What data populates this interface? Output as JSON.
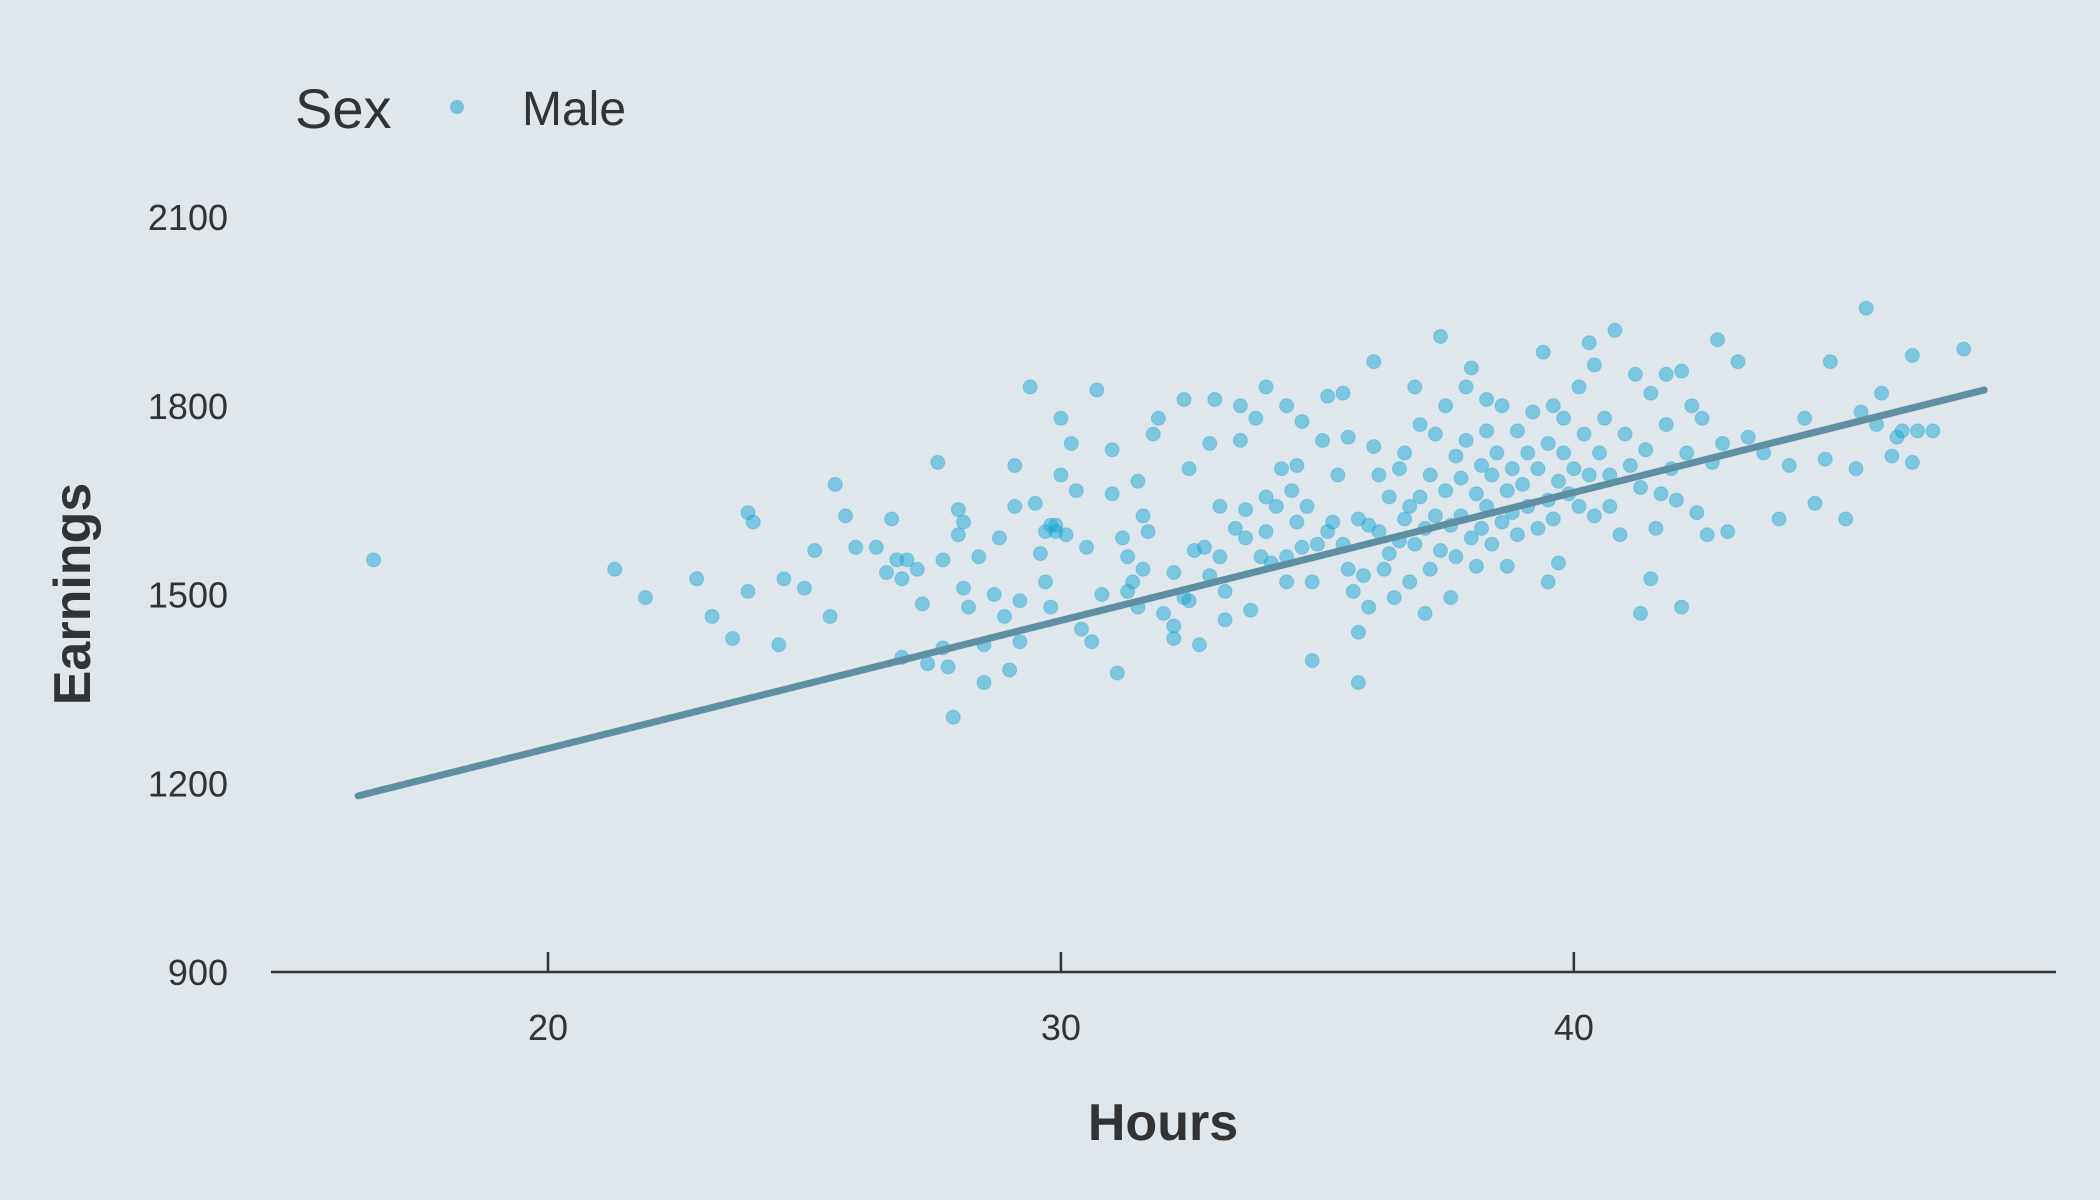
{
  "chart_data": {
    "type": "scatter",
    "xlabel": "Hours",
    "ylabel": "Earnings",
    "xlim": [
      14.6,
      49.4
    ],
    "ylim": [
      900,
      2100
    ],
    "x_ticks": [
      20,
      30,
      40
    ],
    "y_ticks": [
      900,
      1200,
      1500,
      1800,
      2100
    ],
    "legend": {
      "title": "Sex",
      "entries": [
        "Male"
      ],
      "position": "top-left"
    },
    "grid": false,
    "colors": {
      "points": "#1aa6d4",
      "trend_line": "#5f8fa3",
      "background": "#dfe6ec",
      "axis": "#333333"
    },
    "trend_line": {
      "x": [
        16.3,
        48.0
      ],
      "y": [
        1180,
        1825
      ]
    },
    "series": [
      {
        "name": "Male",
        "points": [
          [
            16.6,
            1555
          ],
          [
            21.3,
            1540
          ],
          [
            21.9,
            1495
          ],
          [
            22.9,
            1525
          ],
          [
            23.2,
            1465
          ],
          [
            23.6,
            1430
          ],
          [
            23.9,
            1630
          ],
          [
            24.0,
            1615
          ],
          [
            23.9,
            1505
          ],
          [
            24.5,
            1420
          ],
          [
            24.6,
            1525
          ],
          [
            25.0,
            1510
          ],
          [
            25.2,
            1570
          ],
          [
            25.6,
            1675
          ],
          [
            25.5,
            1465
          ],
          [
            25.8,
            1625
          ],
          [
            26.0,
            1575
          ],
          [
            26.4,
            1575
          ],
          [
            26.6,
            1535
          ],
          [
            26.7,
            1620
          ],
          [
            26.8,
            1555
          ],
          [
            26.9,
            1525
          ],
          [
            27.0,
            1555
          ],
          [
            26.9,
            1400
          ],
          [
            27.2,
            1540
          ],
          [
            27.3,
            1485
          ],
          [
            27.6,
            1710
          ],
          [
            27.7,
            1555
          ],
          [
            27.7,
            1415
          ],
          [
            27.8,
            1385
          ],
          [
            27.9,
            1305
          ],
          [
            28.0,
            1635
          ],
          [
            28.0,
            1595
          ],
          [
            28.1,
            1510
          ],
          [
            28.1,
            1615
          ],
          [
            28.2,
            1480
          ],
          [
            28.4,
            1560
          ],
          [
            28.5,
            1420
          ],
          [
            28.7,
            1500
          ],
          [
            28.8,
            1590
          ],
          [
            28.9,
            1465
          ],
          [
            29.0,
            1380
          ],
          [
            29.1,
            1640
          ],
          [
            29.2,
            1425
          ],
          [
            29.5,
            1645
          ],
          [
            29.6,
            1565
          ],
          [
            29.8,
            1480
          ],
          [
            29.9,
            1610
          ],
          [
            30.0,
            1690
          ],
          [
            29.8,
            1610
          ],
          [
            30.1,
            1595
          ],
          [
            29.7,
            1520
          ],
          [
            29.9,
            1600
          ],
          [
            30.3,
            1665
          ],
          [
            30.2,
            1740
          ],
          [
            30.5,
            1575
          ],
          [
            30.7,
            1825
          ],
          [
            31.0,
            1660
          ],
          [
            31.0,
            1730
          ],
          [
            31.1,
            1375
          ],
          [
            31.2,
            1590
          ],
          [
            31.3,
            1560
          ],
          [
            31.4,
            1520
          ],
          [
            31.5,
            1680
          ],
          [
            31.6,
            1540
          ],
          [
            31.6,
            1625
          ],
          [
            31.7,
            1600
          ],
          [
            31.9,
            1780
          ],
          [
            32.0,
            1470
          ],
          [
            32.2,
            1450
          ],
          [
            32.2,
            1535
          ],
          [
            32.2,
            1430
          ],
          [
            32.4,
            1495
          ],
          [
            32.5,
            1700
          ],
          [
            32.5,
            1490
          ],
          [
            32.6,
            1570
          ],
          [
            32.8,
            1575
          ],
          [
            32.9,
            1530
          ],
          [
            33.0,
            1810
          ],
          [
            33.1,
            1560
          ],
          [
            33.1,
            1640
          ],
          [
            33.2,
            1505
          ],
          [
            33.4,
            1605
          ],
          [
            33.5,
            1745
          ],
          [
            33.6,
            1590
          ],
          [
            33.6,
            1635
          ],
          [
            33.7,
            1475
          ],
          [
            33.8,
            1780
          ],
          [
            34.0,
            1655
          ],
          [
            34.0,
            1600
          ],
          [
            34.1,
            1550
          ],
          [
            34.2,
            1640
          ],
          [
            34.3,
            1700
          ],
          [
            34.4,
            1560
          ],
          [
            34.4,
            1520
          ],
          [
            34.4,
            1800
          ],
          [
            34.5,
            1665
          ],
          [
            34.6,
            1705
          ],
          [
            34.6,
            1615
          ],
          [
            34.7,
            1575
          ],
          [
            34.8,
            1640
          ],
          [
            34.9,
            1395
          ],
          [
            34.9,
            1520
          ],
          [
            35.0,
            1580
          ],
          [
            35.1,
            1745
          ],
          [
            35.2,
            1600
          ],
          [
            35.2,
            1815
          ],
          [
            35.3,
            1615
          ],
          [
            35.4,
            1690
          ],
          [
            35.5,
            1820
          ],
          [
            35.5,
            1580
          ],
          [
            35.6,
            1750
          ],
          [
            35.6,
            1540
          ],
          [
            35.7,
            1505
          ],
          [
            35.8,
            1620
          ],
          [
            35.8,
            1440
          ],
          [
            35.9,
            1530
          ],
          [
            36.0,
            1610
          ],
          [
            36.0,
            1480
          ],
          [
            36.1,
            1735
          ],
          [
            36.2,
            1600
          ],
          [
            36.2,
            1690
          ],
          [
            36.3,
            1540
          ],
          [
            36.4,
            1565
          ],
          [
            36.4,
            1655
          ],
          [
            36.5,
            1495
          ],
          [
            36.6,
            1585
          ],
          [
            36.6,
            1700
          ],
          [
            36.7,
            1620
          ],
          [
            36.7,
            1725
          ],
          [
            36.8,
            1640
          ],
          [
            36.8,
            1520
          ],
          [
            36.9,
            1580
          ],
          [
            37.0,
            1655
          ],
          [
            37.0,
            1770
          ],
          [
            37.1,
            1470
          ],
          [
            37.1,
            1605
          ],
          [
            37.2,
            1540
          ],
          [
            37.2,
            1690
          ],
          [
            37.3,
            1625
          ],
          [
            37.3,
            1755
          ],
          [
            37.4,
            1570
          ],
          [
            37.5,
            1665
          ],
          [
            37.5,
            1800
          ],
          [
            37.6,
            1610
          ],
          [
            37.6,
            1495
          ],
          [
            37.7,
            1720
          ],
          [
            37.7,
            1560
          ],
          [
            37.8,
            1625
          ],
          [
            37.8,
            1685
          ],
          [
            37.9,
            1745
          ],
          [
            37.9,
            1830
          ],
          [
            38.0,
            1590
          ],
          [
            38.0,
            1860
          ],
          [
            38.1,
            1660
          ],
          [
            38.1,
            1545
          ],
          [
            38.2,
            1705
          ],
          [
            38.2,
            1605
          ],
          [
            38.3,
            1760
          ],
          [
            38.3,
            1640
          ],
          [
            38.4,
            1690
          ],
          [
            38.4,
            1580
          ],
          [
            38.5,
            1725
          ],
          [
            38.6,
            1615
          ],
          [
            38.6,
            1800
          ],
          [
            38.7,
            1665
          ],
          [
            38.7,
            1545
          ],
          [
            38.8,
            1700
          ],
          [
            38.8,
            1630
          ],
          [
            38.9,
            1760
          ],
          [
            38.9,
            1595
          ],
          [
            39.0,
            1675
          ],
          [
            39.1,
            1725
          ],
          [
            39.1,
            1640
          ],
          [
            39.2,
            1790
          ],
          [
            39.3,
            1605
          ],
          [
            39.3,
            1700
          ],
          [
            39.4,
            1885
          ],
          [
            39.5,
            1650
          ],
          [
            39.5,
            1740
          ],
          [
            39.6,
            1800
          ],
          [
            39.6,
            1620
          ],
          [
            39.7,
            1680
          ],
          [
            39.7,
            1550
          ],
          [
            39.8,
            1725
          ],
          [
            39.8,
            1780
          ],
          [
            39.9,
            1660
          ],
          [
            40.0,
            1700
          ],
          [
            40.1,
            1830
          ],
          [
            40.1,
            1640
          ],
          [
            40.2,
            1755
          ],
          [
            40.3,
            1900
          ],
          [
            40.3,
            1690
          ],
          [
            40.4,
            1865
          ],
          [
            40.5,
            1725
          ],
          [
            40.6,
            1780
          ],
          [
            40.7,
            1640
          ],
          [
            40.7,
            1690
          ],
          [
            40.8,
            1920
          ],
          [
            40.9,
            1595
          ],
          [
            41.0,
            1755
          ],
          [
            41.1,
            1705
          ],
          [
            41.2,
            1850
          ],
          [
            41.3,
            1670
          ],
          [
            41.4,
            1730
          ],
          [
            41.5,
            1820
          ],
          [
            41.6,
            1605
          ],
          [
            41.7,
            1660
          ],
          [
            41.8,
            1850
          ],
          [
            41.8,
            1770
          ],
          [
            41.9,
            1700
          ],
          [
            42.0,
            1650
          ],
          [
            42.1,
            1855
          ],
          [
            42.2,
            1725
          ],
          [
            42.3,
            1800
          ],
          [
            42.4,
            1630
          ],
          [
            42.5,
            1780
          ],
          [
            42.7,
            1710
          ],
          [
            42.8,
            1905
          ],
          [
            42.9,
            1740
          ],
          [
            43.0,
            1600
          ],
          [
            43.2,
            1870
          ],
          [
            43.4,
            1750
          ],
          [
            43.7,
            1725
          ],
          [
            44.0,
            1620
          ],
          [
            44.2,
            1705
          ],
          [
            44.5,
            1780
          ],
          [
            44.7,
            1645
          ],
          [
            44.9,
            1715
          ],
          [
            45.0,
            1870
          ],
          [
            45.3,
            1620
          ],
          [
            45.5,
            1700
          ],
          [
            45.6,
            1790
          ],
          [
            45.7,
            1955
          ],
          [
            45.9,
            1770
          ],
          [
            46.0,
            1820
          ],
          [
            46.2,
            1720
          ],
          [
            46.3,
            1750
          ],
          [
            46.4,
            1760
          ],
          [
            46.6,
            1880
          ],
          [
            46.6,
            1710
          ],
          [
            46.7,
            1760
          ],
          [
            47.0,
            1760
          ],
          [
            47.6,
            1890
          ],
          [
            29.4,
            1830
          ],
          [
            30.0,
            1780
          ],
          [
            29.1,
            1705
          ],
          [
            29.7,
            1600
          ],
          [
            30.4,
            1445
          ],
          [
            30.6,
            1425
          ],
          [
            31.3,
            1505
          ],
          [
            31.8,
            1755
          ],
          [
            32.4,
            1810
          ],
          [
            33.2,
            1460
          ],
          [
            33.5,
            1800
          ],
          [
            34.0,
            1830
          ],
          [
            35.8,
            1360
          ],
          [
            36.1,
            1870
          ],
          [
            36.9,
            1830
          ],
          [
            37.4,
            1910
          ],
          [
            38.3,
            1810
          ],
          [
            39.5,
            1520
          ],
          [
            40.4,
            1625
          ],
          [
            41.3,
            1470
          ],
          [
            41.5,
            1525
          ],
          [
            42.1,
            1480
          ],
          [
            42.6,
            1595
          ],
          [
            33.9,
            1560
          ],
          [
            32.7,
            1420
          ],
          [
            31.5,
            1480
          ],
          [
            30.8,
            1500
          ],
          [
            32.9,
            1740
          ],
          [
            34.7,
            1775
          ],
          [
            28.5,
            1360
          ],
          [
            29.2,
            1490
          ],
          [
            27.4,
            1390
          ]
        ]
      }
    ]
  }
}
